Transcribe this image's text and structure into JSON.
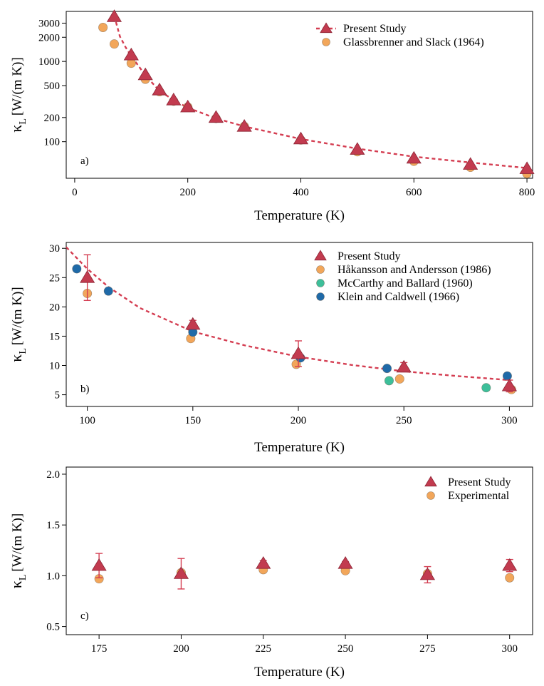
{
  "chart_data": [
    {
      "type": "scatter",
      "panel_label": "a)",
      "xlabel": "Temperature (K)",
      "ylabel_main": "κ",
      "ylabel_sub": "L",
      "ylabel_units": "[W/(m K)]",
      "xlim": [
        -15,
        810
      ],
      "ylim": [
        35,
        4200
      ],
      "yscale": "log",
      "xticks": [
        0,
        200,
        400,
        600,
        800
      ],
      "xtick_labels": [
        "0",
        "200",
        "400",
        "600",
        "800"
      ],
      "yticks": [
        100,
        200,
        500,
        1000,
        2000,
        3000
      ],
      "ytick_labels": [
        "100",
        "200",
        "500",
        "1000",
        "2000",
        "3000"
      ],
      "legend_position": "top-right",
      "series": [
        {
          "name": "Present Study",
          "marker": "triangle",
          "fit_line": true,
          "color": "#c23b4f",
          "x": [
            70,
            100,
            125,
            150,
            175,
            200,
            250,
            300,
            400,
            500,
            600,
            700,
            800
          ],
          "y": [
            3600,
            1200,
            680,
            440,
            330,
            270,
            200,
            155,
            108,
            80,
            62,
            52,
            46
          ]
        },
        {
          "name": "Glassbrenner and Slack (1964)",
          "marker": "circle",
          "color": "#f2a65a",
          "x": [
            50,
            70,
            100,
            125,
            150,
            175,
            200,
            250,
            300,
            400,
            500,
            600,
            700,
            800
          ],
          "y": [
            2650,
            1650,
            950,
            600,
            420,
            320,
            270,
            195,
            155,
            105,
            75,
            57,
            48,
            40
          ]
        }
      ],
      "fit": {
        "x": [
          70,
          80,
          90,
          100,
          125,
          150,
          175,
          200,
          250,
          300,
          400,
          500,
          600,
          700,
          800
        ],
        "y": [
          3700,
          2050,
          1500,
          1170,
          670,
          430,
          330,
          265,
          195,
          155,
          108,
          82,
          65,
          55,
          47
        ]
      }
    },
    {
      "type": "scatter",
      "panel_label": "b)",
      "xlabel": "Temperature (K)",
      "ylabel_main": "κ",
      "ylabel_sub": "L",
      "ylabel_units": "[W/(m K)]",
      "xlim": [
        90,
        311
      ],
      "ylim": [
        3,
        31
      ],
      "yscale": "linear",
      "xticks": [
        100,
        150,
        200,
        250,
        300
      ],
      "xtick_labels": [
        "100",
        "150",
        "200",
        "250",
        "300"
      ],
      "yticks": [
        5,
        10,
        15,
        20,
        25,
        30
      ],
      "ytick_labels": [
        "5",
        "10",
        "15",
        "20",
        "25",
        "30"
      ],
      "legend_position": "top-right",
      "series": [
        {
          "name": "Present Study",
          "marker": "triangle",
          "color": "#c23b4f",
          "x": [
            100,
            150,
            200,
            250,
            300
          ],
          "y": [
            25.0,
            17.0,
            12.0,
            9.7,
            6.5
          ],
          "err": [
            3.9,
            0.7,
            2.2,
            0.8,
            1.0
          ]
        },
        {
          "name": "Håkansson and Andersson (1986)",
          "marker": "circle",
          "color": "#f2a65a",
          "x": [
            100,
            149,
            199,
            248,
            301
          ],
          "y": [
            22.3,
            14.6,
            10.2,
            7.7,
            5.9
          ]
        },
        {
          "name": "McCarthy and Ballard (1960)",
          "marker": "circle",
          "color": "#3dbf9a",
          "x": [
            243,
            289
          ],
          "y": [
            7.4,
            6.2
          ]
        },
        {
          "name": "Klein and Caldwell (1966)",
          "marker": "circle",
          "color": "#1f6aa8",
          "x": [
            95,
            110,
            150,
            201,
            242,
            299
          ],
          "y": [
            26.5,
            22.7,
            15.7,
            11.3,
            9.5,
            8.2
          ]
        }
      ],
      "fit": {
        "x": [
          90,
          100,
          110,
          125,
          150,
          175,
          200,
          225,
          250,
          275,
          300
        ],
        "y": [
          30.2,
          26.5,
          23.4,
          19.8,
          15.8,
          13.4,
          11.5,
          10.1,
          9.0,
          8.2,
          7.5
        ]
      }
    },
    {
      "type": "scatter",
      "panel_label": "c)",
      "xlabel": "Temperature (K)",
      "ylabel_main": "κ",
      "ylabel_sub": "L",
      "ylabel_units": "[W/(m K)]",
      "xlim": [
        165,
        307
      ],
      "ylim": [
        0.42,
        2.07
      ],
      "yscale": "linear",
      "xticks": [
        175,
        200,
        225,
        250,
        275,
        300
      ],
      "xtick_labels": [
        "175",
        "200",
        "225",
        "250",
        "275",
        "300"
      ],
      "yticks": [
        0.5,
        1.0,
        1.5,
        2.0
      ],
      "ytick_labels": [
        "0.5",
        "1.0",
        "1.5",
        "2.0"
      ],
      "legend_position": "top-right",
      "series": [
        {
          "name": "Present Study",
          "marker": "triangle",
          "color": "#c23b4f",
          "x": [
            175,
            200,
            225,
            250,
            275,
            300
          ],
          "y": [
            1.1,
            1.02,
            1.12,
            1.12,
            1.01,
            1.1
          ],
          "err": [
            0.12,
            0.15,
            0.03,
            0.02,
            0.08,
            0.06
          ]
        },
        {
          "name": "Experimental",
          "marker": "circle",
          "color": "#f2a65a",
          "x": [
            175,
            200,
            225,
            250,
            275,
            300
          ],
          "y": [
            0.97,
            1.03,
            1.06,
            1.05,
            1.02,
            0.98
          ]
        }
      ]
    }
  ]
}
